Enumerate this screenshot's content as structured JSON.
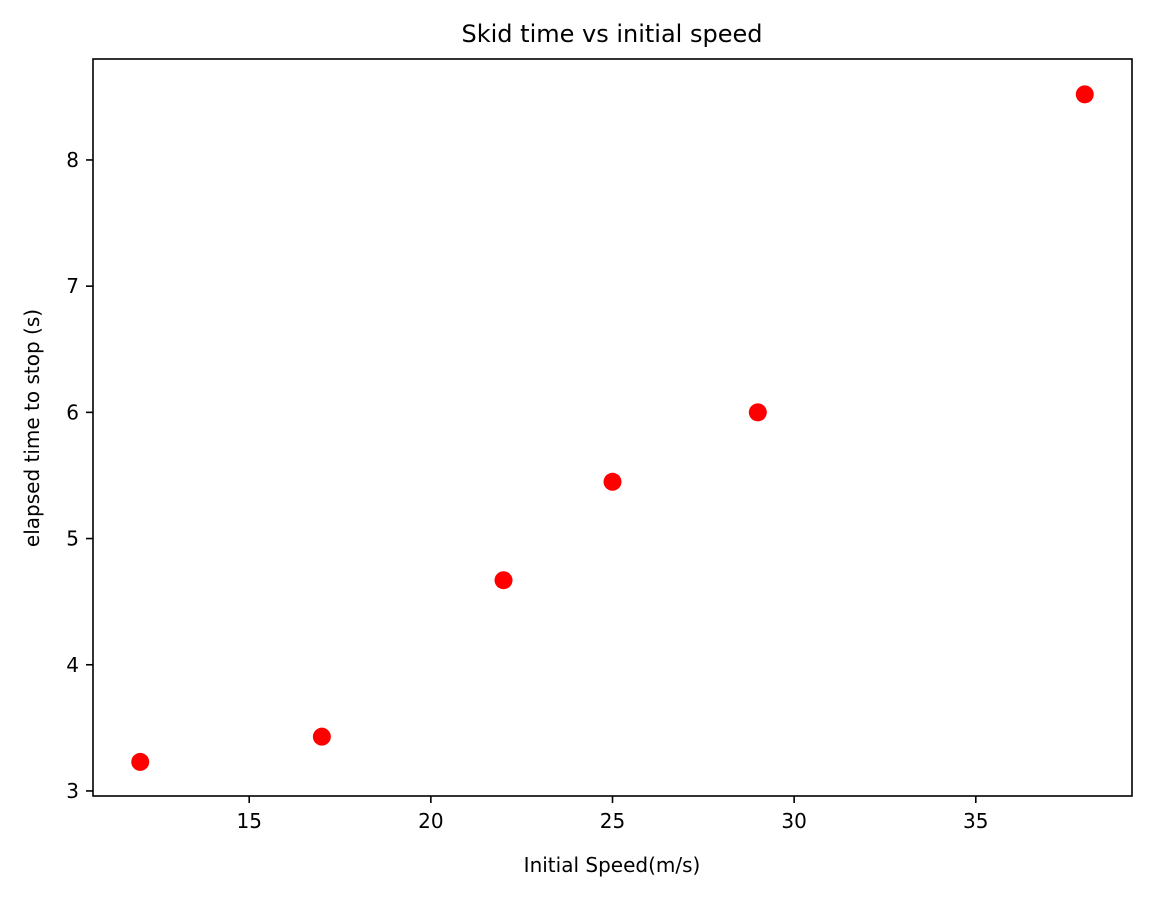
{
  "chart_data": {
    "type": "scatter",
    "title": "Skid time vs initial speed",
    "xlabel": "Initial Speed(m/s)",
    "ylabel": "elapsed time to stop (s)",
    "x": [
      12,
      17,
      22,
      25,
      29,
      38
    ],
    "y": [
      3.23,
      3.43,
      4.67,
      5.45,
      6.0,
      8.52
    ],
    "xlim": [
      10.7,
      39.3
    ],
    "ylim": [
      2.96,
      8.8
    ],
    "xticks": [
      15,
      20,
      25,
      30,
      35
    ],
    "yticks": [
      3,
      4,
      5,
      6,
      7,
      8
    ],
    "grid": false,
    "marker_color": "#ff0000"
  }
}
